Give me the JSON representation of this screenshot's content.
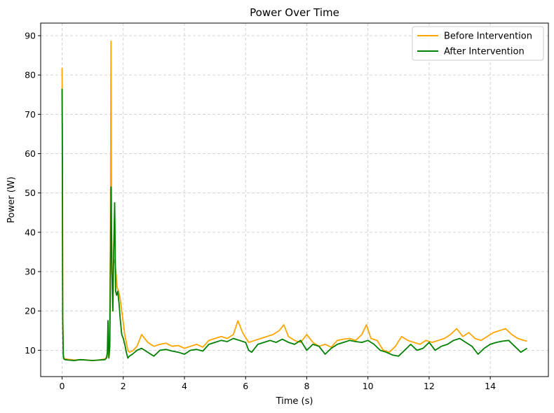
{
  "chart_data": {
    "type": "line",
    "title": "Power Over Time",
    "xlabel": "Time (s)",
    "ylabel": "Power (W)",
    "xlim": [
      -0.7,
      15.9
    ],
    "ylim": [
      3.3,
      93.2
    ],
    "xticks": [
      0,
      2,
      4,
      6,
      8,
      10,
      12,
      14
    ],
    "xtick_labels": [
      "0",
      "2",
      "4",
      "6",
      "8",
      "10",
      "12",
      "14"
    ],
    "yticks": [
      10,
      20,
      30,
      40,
      50,
      60,
      70,
      80,
      90
    ],
    "ytick_labels": [
      "10",
      "20",
      "30",
      "40",
      "50",
      "60",
      "70",
      "80",
      "90"
    ],
    "grid": true,
    "legend_position": "top-right",
    "series": [
      {
        "name": "Before Intervention",
        "color": "#ffa500",
        "x": [
          0,
          0.01,
          0.02,
          0.04,
          0.06,
          0.1,
          0.2,
          0.4,
          0.6,
          0.8,
          1.0,
          1.2,
          1.4,
          1.5,
          1.55,
          1.58,
          1.6,
          1.62,
          1.64,
          1.66,
          1.68,
          1.72,
          1.76,
          1.8,
          1.85,
          1.9,
          1.95,
          2.0,
          2.05,
          2.1,
          2.15,
          2.2,
          2.3,
          2.45,
          2.6,
          2.8,
          3.0,
          3.2,
          3.4,
          3.6,
          3.8,
          4.0,
          4.2,
          4.4,
          4.6,
          4.8,
          5.0,
          5.2,
          5.4,
          5.6,
          5.75,
          5.9,
          6.1,
          6.3,
          6.5,
          6.7,
          6.9,
          7.1,
          7.25,
          7.4,
          7.6,
          7.8,
          7.9,
          8.0,
          8.2,
          8.4,
          8.6,
          8.8,
          9.0,
          9.2,
          9.4,
          9.6,
          9.8,
          9.95,
          10.1,
          10.3,
          10.5,
          10.7,
          10.9,
          11.1,
          11.3,
          11.5,
          11.7,
          11.9,
          12.1,
          12.3,
          12.5,
          12.7,
          12.9,
          13.1,
          13.3,
          13.5,
          13.7,
          13.9,
          14.1,
          14.3,
          14.5,
          14.7,
          14.9,
          15.1,
          15.2
        ],
        "y": [
          81.8,
          65,
          20,
          9,
          8,
          7.8,
          7.7,
          7.5,
          7.6,
          7.5,
          7.4,
          7.5,
          7.8,
          8.5,
          12,
          35,
          88.6,
          40,
          25,
          20,
          32,
          33,
          30,
          26,
          25,
          23,
          20,
          17,
          14,
          12,
          10,
          9.5,
          9.8,
          11,
          14,
          12,
          11,
          11.5,
          11.8,
          11,
          11.2,
          10.5,
          11,
          11.5,
          10.8,
          12.5,
          13,
          13.5,
          13,
          14,
          17.5,
          14.5,
          12,
          12.5,
          13,
          13.5,
          14,
          15,
          16.5,
          13.5,
          12.5,
          12,
          13,
          14,
          12,
          11,
          11.5,
          10.8,
          12.5,
          12.8,
          13,
          12.5,
          14,
          16.5,
          13,
          12.5,
          10,
          9.5,
          11,
          13.5,
          12.5,
          12,
          11.5,
          12.5,
          12,
          12.5,
          13,
          14,
          15.5,
          13.5,
          14.5,
          13,
          12.5,
          13.5,
          14.5,
          15,
          15.5,
          14,
          13,
          12.5,
          12.3
        ]
      },
      {
        "name": "After Intervention",
        "color": "#008000",
        "x": [
          0,
          0.01,
          0.02,
          0.04,
          0.06,
          0.1,
          0.2,
          0.4,
          0.6,
          0.8,
          1.0,
          1.2,
          1.4,
          1.45,
          1.48,
          1.5,
          1.53,
          1.56,
          1.6,
          1.63,
          1.66,
          1.69,
          1.72,
          1.75,
          1.78,
          1.82,
          1.86,
          1.9,
          1.95,
          2.0,
          2.05,
          2.1,
          2.15,
          2.2,
          2.3,
          2.45,
          2.6,
          2.8,
          3.0,
          3.2,
          3.4,
          3.6,
          3.8,
          4.0,
          4.2,
          4.4,
          4.6,
          4.8,
          5.0,
          5.2,
          5.4,
          5.6,
          5.8,
          6.0,
          6.1,
          6.2,
          6.4,
          6.6,
          6.8,
          7.0,
          7.2,
          7.4,
          7.6,
          7.8,
          8.0,
          8.2,
          8.4,
          8.6,
          8.8,
          9.0,
          9.2,
          9.4,
          9.6,
          9.8,
          10.0,
          10.2,
          10.4,
          10.6,
          10.8,
          11.0,
          11.2,
          11.4,
          11.6,
          11.8,
          12.0,
          12.2,
          12.4,
          12.6,
          12.8,
          13.0,
          13.2,
          13.4,
          13.6,
          13.8,
          14.0,
          14.2,
          14.4,
          14.6,
          14.8,
          15.0,
          15.2
        ],
        "y": [
          76.5,
          55,
          18,
          8.5,
          7.8,
          7.6,
          7.5,
          7.4,
          7.6,
          7.5,
          7.4,
          7.5,
          7.6,
          8.0,
          9.5,
          17.5,
          8.0,
          11,
          51.5,
          30,
          20,
          36,
          47.5,
          25,
          24,
          25,
          22,
          18,
          14,
          13,
          11.5,
          9.5,
          8,
          8.5,
          9,
          10,
          10.5,
          9.5,
          8.5,
          10,
          10.2,
          9.8,
          9.5,
          9,
          10,
          10.2,
          9.8,
          11.5,
          12,
          12.5,
          12.2,
          13,
          12.5,
          12,
          10,
          9.5,
          11.5,
          12,
          12.5,
          12,
          12.8,
          12,
          11.5,
          12.5,
          10,
          11.5,
          11,
          9,
          10.5,
          11.5,
          12,
          12.5,
          12.2,
          12,
          12.5,
          11.5,
          10,
          9.5,
          8.8,
          8.5,
          10,
          11.5,
          10,
          10.5,
          12,
          10,
          11,
          11.5,
          12.5,
          13,
          12,
          11,
          9,
          10.5,
          11.5,
          12,
          12.3,
          12.5,
          11,
          9.5,
          10.5
        ]
      }
    ]
  }
}
